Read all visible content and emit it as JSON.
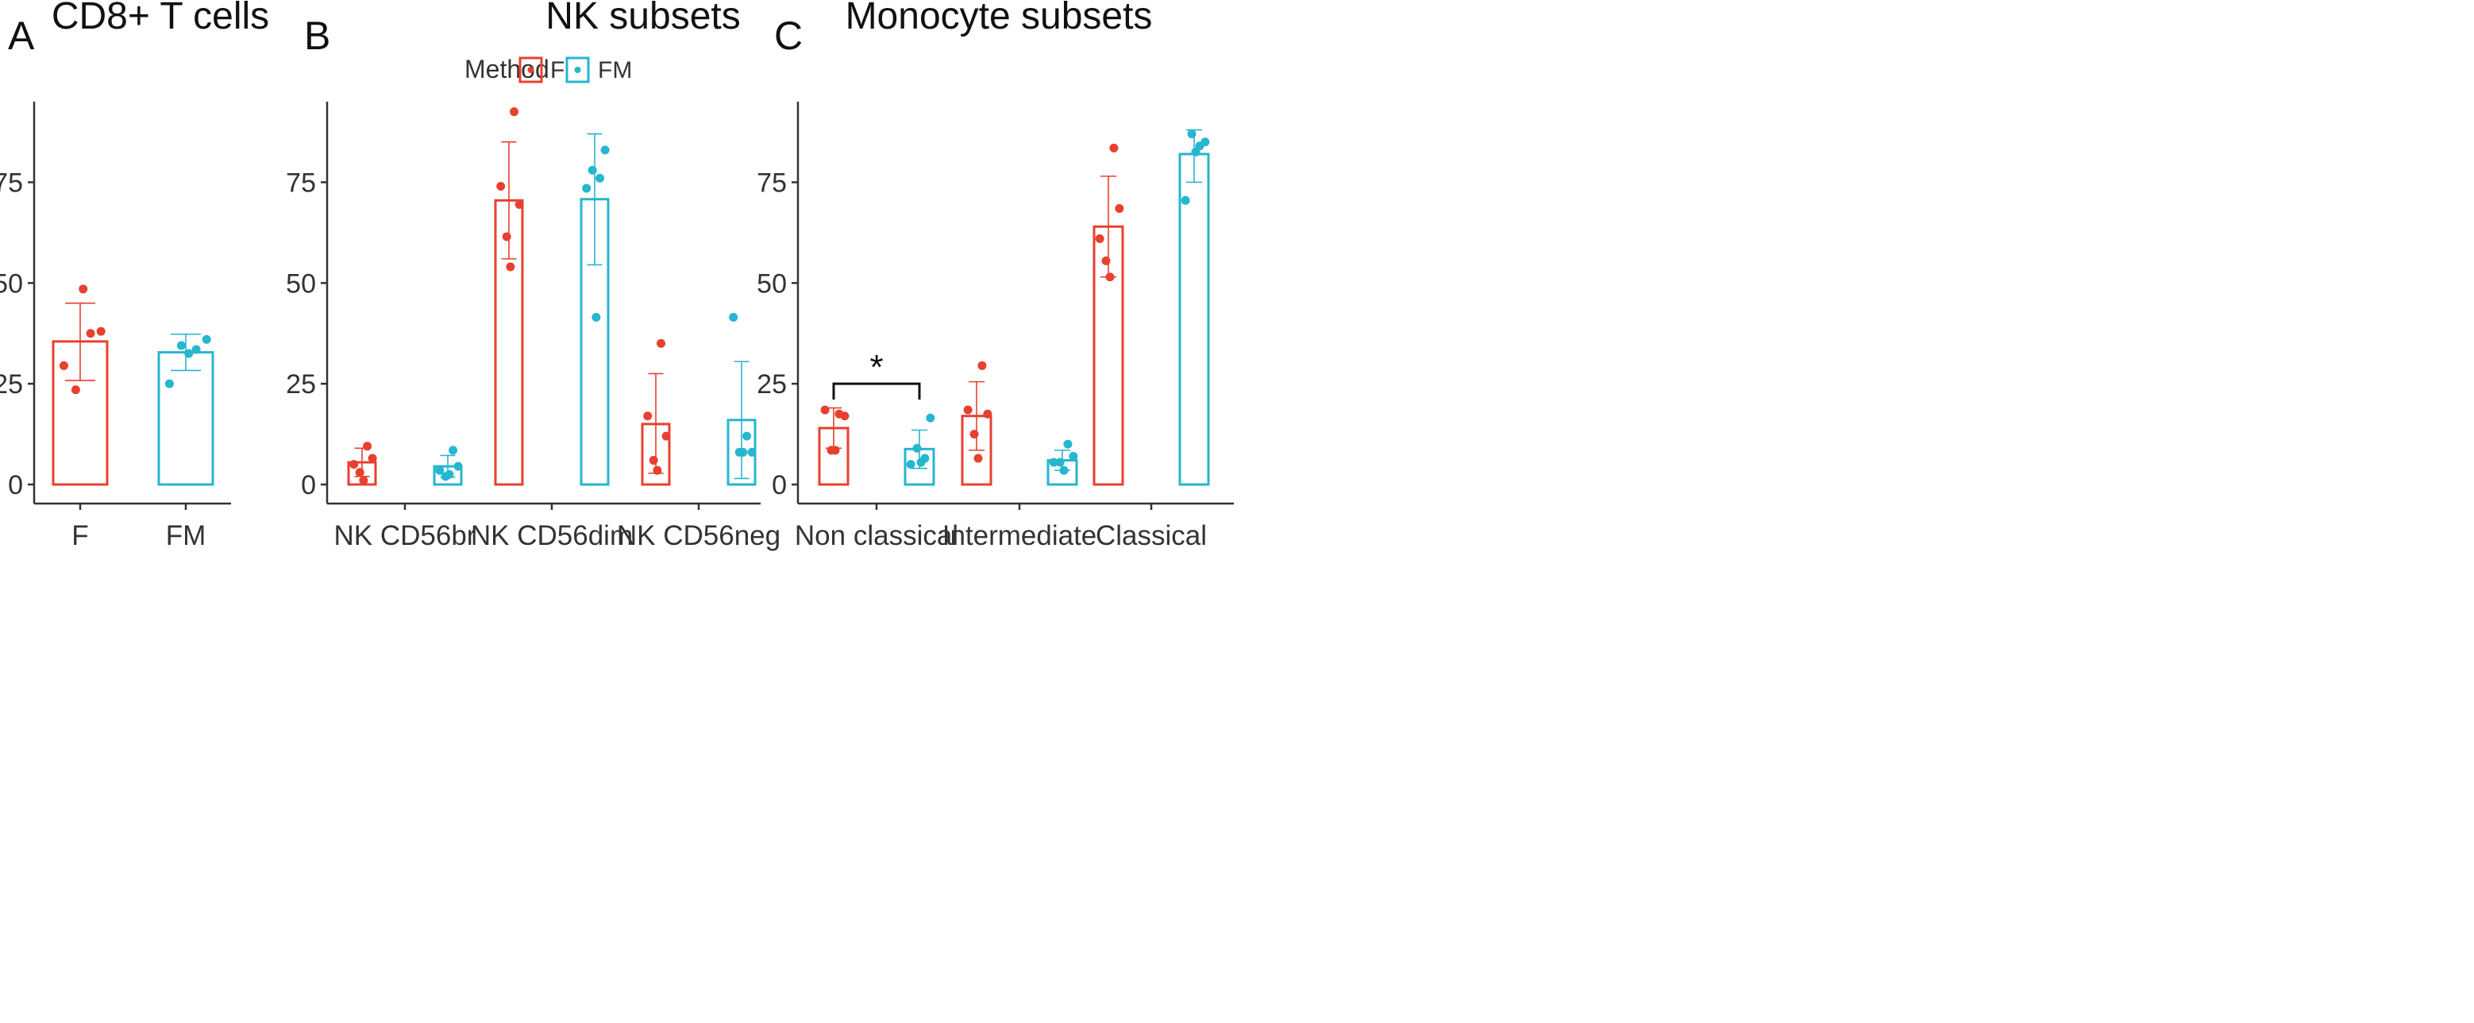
{
  "colors": {
    "F": "#e8402f",
    "FM": "#26b6cf",
    "axis": "#333333",
    "text": "#111111"
  },
  "legend": {
    "title": "Method",
    "items": [
      {
        "key": "F",
        "label": "F"
      },
      {
        "key": "FM",
        "label": "FM"
      }
    ],
    "placement": "top-center"
  },
  "chart_data": [
    {
      "id": "A",
      "panel_label": "A",
      "type": "bar",
      "title": "CD8+ T cells",
      "ylim": [
        0,
        95
      ],
      "yticks": [
        0,
        25,
        50,
        75
      ],
      "categories": [
        "F",
        "FM"
      ],
      "bars": [
        {
          "category": "F",
          "method": "F",
          "value": 35.5,
          "err_low": 25.8,
          "err_high": 45.0,
          "points": [
            29.5,
            37.5,
            38.0,
            23.5,
            48.5
          ]
        },
        {
          "category": "FM",
          "method": "FM",
          "value": 32.8,
          "err_low": 28.3,
          "err_high": 37.3,
          "points": [
            25.0,
            33.5,
            36.0,
            34.5,
            32.5
          ]
        }
      ]
    },
    {
      "id": "B",
      "panel_label": "B",
      "type": "bar",
      "title": "NK subsets",
      "ylim": [
        0,
        95
      ],
      "yticks": [
        0,
        25,
        50,
        75
      ],
      "categories": [
        "NK CD56br",
        "NK CD56dim",
        "NK CD56neg"
      ],
      "bars": [
        {
          "category": "NK CD56br",
          "method": "F",
          "value": 5.5,
          "err_low": 2.0,
          "err_high": 9.0,
          "points": [
            5.0,
            9.5,
            6.5,
            3.0,
            1.0
          ]
        },
        {
          "category": "NK CD56br",
          "method": "FM",
          "value": 4.5,
          "err_low": 1.8,
          "err_high": 7.2,
          "points": [
            3.5,
            8.5,
            4.5,
            2.0,
            2.5
          ]
        },
        {
          "category": "NK CD56dim",
          "method": "F",
          "value": 70.5,
          "err_low": 56.0,
          "err_high": 85.0,
          "points": [
            74.0,
            92.5,
            69.5,
            61.5,
            54.0
          ]
        },
        {
          "category": "NK CD56dim",
          "method": "FM",
          "value": 70.8,
          "err_low": 54.5,
          "err_high": 87.0,
          "points": [
            73.5,
            76.0,
            83.0,
            78.0,
            41.5
          ]
        },
        {
          "category": "NK CD56neg",
          "method": "F",
          "value": 15.0,
          "err_low": 2.8,
          "err_high": 27.5,
          "points": [
            17.0,
            35.0,
            12.0,
            6.0,
            3.5
          ]
        },
        {
          "category": "NK CD56neg",
          "method": "FM",
          "value": 16.0,
          "err_low": 1.5,
          "err_high": 30.5,
          "points": [
            41.5,
            12.0,
            8.0,
            8.0,
            8.0
          ]
        }
      ]
    },
    {
      "id": "C",
      "panel_label": "C",
      "type": "bar",
      "title": "Monocyte subsets",
      "ylim": [
        0,
        95
      ],
      "yticks": [
        0,
        25,
        50,
        75
      ],
      "categories": [
        "Non classical",
        "Intermediate",
        "Classical"
      ],
      "bars": [
        {
          "category": "Non classical",
          "method": "F",
          "value": 14.0,
          "err_low": 9.0,
          "err_high": 19.0,
          "points": [
            18.5,
            17.5,
            17.0,
            8.5,
            8.5
          ]
        },
        {
          "category": "Non classical",
          "method": "FM",
          "value": 8.8,
          "err_low": 4.0,
          "err_high": 13.5,
          "points": [
            5.0,
            6.5,
            16.5,
            9.0,
            5.5
          ]
        },
        {
          "category": "Intermediate",
          "method": "F",
          "value": 17.0,
          "err_low": 8.5,
          "err_high": 25.5,
          "points": [
            18.5,
            29.5,
            17.5,
            12.5,
            6.5
          ]
        },
        {
          "category": "Intermediate",
          "method": "FM",
          "value": 6.0,
          "err_low": 3.5,
          "err_high": 8.5,
          "points": [
            5.5,
            10.0,
            7.0,
            5.5,
            3.5
          ]
        },
        {
          "category": "Classical",
          "method": "F",
          "value": 64.0,
          "err_low": 51.5,
          "err_high": 76.5,
          "points": [
            61.0,
            83.5,
            68.5,
            55.5,
            51.5
          ]
        },
        {
          "category": "Classical",
          "method": "FM",
          "value": 82.0,
          "err_low": 75.0,
          "err_high": 88.0,
          "points": [
            70.5,
            84.0,
            85.0,
            87.0,
            82.5
          ]
        }
      ],
      "annotations": [
        {
          "text": "*",
          "category": "Non classical",
          "between": [
            "F",
            "FM"
          ],
          "y": 25
        }
      ]
    }
  ]
}
